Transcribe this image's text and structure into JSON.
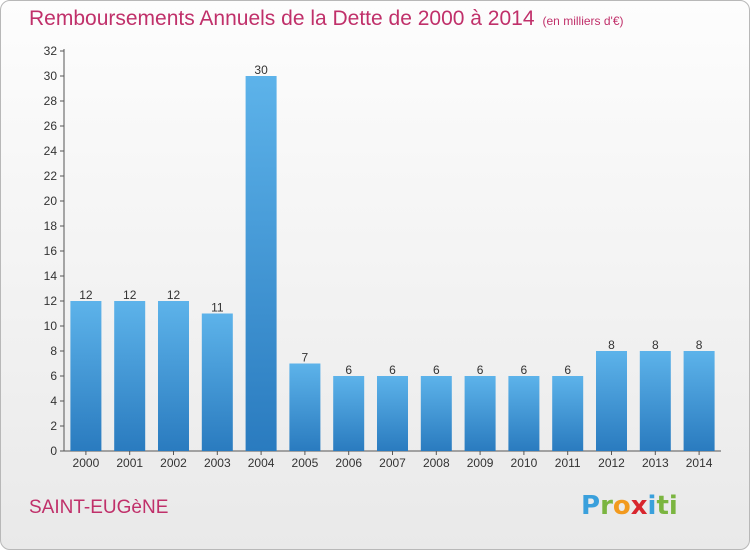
{
  "header": {
    "title": "Remboursements Annuels de la Dette de 2000 à 2014",
    "unit": "(en milliers d'€)"
  },
  "footer": {
    "city": "SAINT-EUGèNE",
    "logo_letters": [
      "P",
      "r",
      "o",
      "x",
      "i",
      "ti"
    ]
  },
  "colors": {
    "title": "#c0306a",
    "bar_top": "#5db3ea",
    "bar_bottom": "#2a7bbf"
  },
  "chart_data": {
    "type": "bar",
    "categories": [
      "2000",
      "2001",
      "2002",
      "2003",
      "2004",
      "2005",
      "2006",
      "2007",
      "2008",
      "2009",
      "2010",
      "2011",
      "2012",
      "2013",
      "2014"
    ],
    "values": [
      12,
      12,
      12,
      11,
      30,
      7,
      6,
      6,
      6,
      6,
      6,
      6,
      8,
      8,
      8
    ],
    "title": "Remboursements Annuels de la Dette de 2000 à 2014",
    "unit": "(en milliers d'€)",
    "xlabel": "",
    "ylabel": "",
    "ylim": [
      0,
      32
    ],
    "yticks": [
      0,
      2,
      4,
      6,
      8,
      10,
      12,
      14,
      16,
      18,
      20,
      22,
      24,
      26,
      28,
      30,
      32
    ],
    "grid": false,
    "legend": "none"
  }
}
